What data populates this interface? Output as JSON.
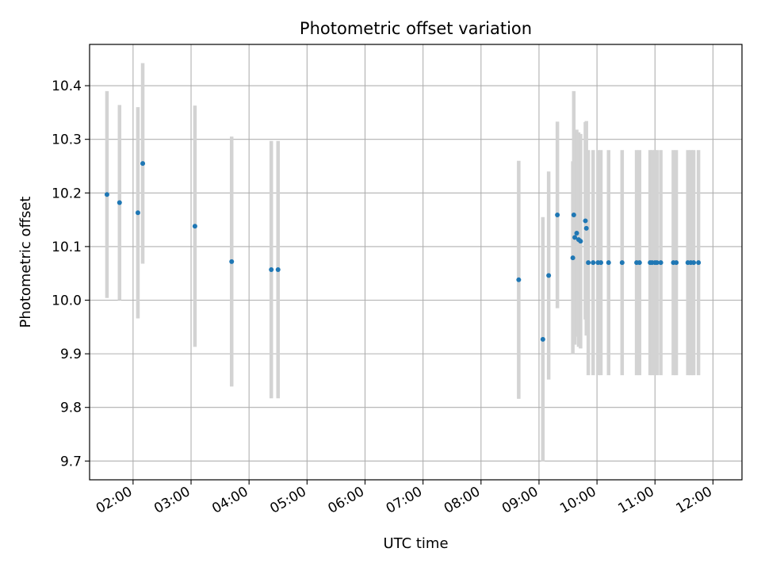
{
  "chart_data": {
    "type": "scatter",
    "title": "Photometric offset variation",
    "xlabel": "UTC time",
    "ylabel": "Photometric offset",
    "x_unit": "UTC time (HH:MM)",
    "xlim": [
      "01:15",
      "12:30"
    ],
    "ylim": [
      9.665,
      10.477
    ],
    "grid": true,
    "x_ticks": [
      "02:00",
      "03:00",
      "04:00",
      "05:00",
      "06:00",
      "07:00",
      "08:00",
      "09:00",
      "10:00",
      "11:00",
      "12:00"
    ],
    "y_ticks": [
      "9.7",
      "9.8",
      "9.9",
      "10.0",
      "10.1",
      "10.2",
      "10.3",
      "10.4"
    ],
    "marker_color": "#1f77b4",
    "errorbar_color": "#d3d3d3",
    "points": [
      {
        "x": "01:33",
        "y": 10.197,
        "err": 0.193
      },
      {
        "x": "01:46",
        "y": 10.182,
        "err": 0.182
      },
      {
        "x": "02:05",
        "y": 10.163,
        "err": 0.197
      },
      {
        "x": "02:10",
        "y": 10.255,
        "err": 0.187
      },
      {
        "x": "03:04",
        "y": 10.138,
        "err": 0.225
      },
      {
        "x": "03:42",
        "y": 10.072,
        "err": 0.233
      },
      {
        "x": "04:23",
        "y": 10.057,
        "err": 0.24
      },
      {
        "x": "04:30",
        "y": 10.057,
        "err": 0.24
      },
      {
        "x": "08:39",
        "y": 10.038,
        "err": 0.222
      },
      {
        "x": "09:04",
        "y": 9.927,
        "err": 0.228
      },
      {
        "x": "09:10",
        "y": 10.046,
        "err": 0.194
      },
      {
        "x": "09:19",
        "y": 10.159,
        "err": 0.174
      },
      {
        "x": "09:35",
        "y": 10.079,
        "err": 0.18
      },
      {
        "x": "09:36",
        "y": 10.159,
        "err": 0.231
      },
      {
        "x": "09:37",
        "y": 10.117,
        "err": 0.2
      },
      {
        "x": "09:39",
        "y": 10.125,
        "err": 0.193
      },
      {
        "x": "09:41",
        "y": 10.113,
        "err": 0.2
      },
      {
        "x": "09:43",
        "y": 10.11,
        "err": 0.2
      },
      {
        "x": "09:48",
        "y": 10.148,
        "err": 0.184
      },
      {
        "x": "09:49",
        "y": 10.134,
        "err": 0.2
      },
      {
        "x": "09:51",
        "y": 10.07,
        "err": 0.21
      },
      {
        "x": "09:56",
        "y": 10.07,
        "err": 0.21
      },
      {
        "x": "10:01",
        "y": 10.07,
        "err": 0.21
      },
      {
        "x": "10:04",
        "y": 10.07,
        "err": 0.21
      },
      {
        "x": "10:12",
        "y": 10.07,
        "err": 0.21
      },
      {
        "x": "10:26",
        "y": 10.07,
        "err": 0.21
      },
      {
        "x": "10:41",
        "y": 10.07,
        "err": 0.21
      },
      {
        "x": "10:44",
        "y": 10.07,
        "err": 0.21
      },
      {
        "x": "10:55",
        "y": 10.07,
        "err": 0.21
      },
      {
        "x": "10:57",
        "y": 10.07,
        "err": 0.21
      },
      {
        "x": "11:00",
        "y": 10.07,
        "err": 0.21
      },
      {
        "x": "11:02",
        "y": 10.07,
        "err": 0.21
      },
      {
        "x": "11:06",
        "y": 10.07,
        "err": 0.21
      },
      {
        "x": "11:19",
        "y": 10.07,
        "err": 0.21
      },
      {
        "x": "11:22",
        "y": 10.07,
        "err": 0.21
      },
      {
        "x": "11:34",
        "y": 10.07,
        "err": 0.21
      },
      {
        "x": "11:37",
        "y": 10.07,
        "err": 0.21
      },
      {
        "x": "11:40",
        "y": 10.07,
        "err": 0.21
      },
      {
        "x": "11:45",
        "y": 10.07,
        "err": 0.21
      }
    ]
  }
}
